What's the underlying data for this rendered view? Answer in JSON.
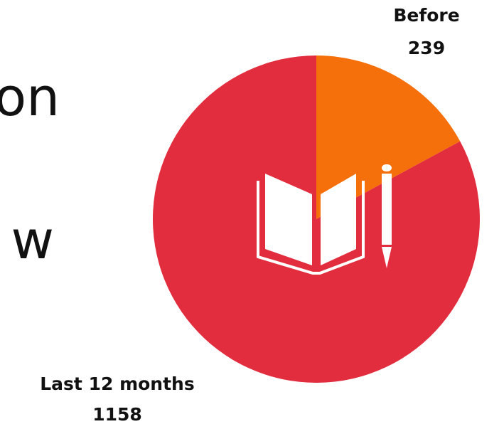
{
  "chart_data": {
    "type": "pie",
    "categories": [
      "Before",
      "Last 12 months"
    ],
    "values": [
      239,
      1158
    ],
    "colors": [
      "#f56f0b",
      "#e22d3e"
    ],
    "annotations": [
      "on",
      "w"
    ]
  }
}
